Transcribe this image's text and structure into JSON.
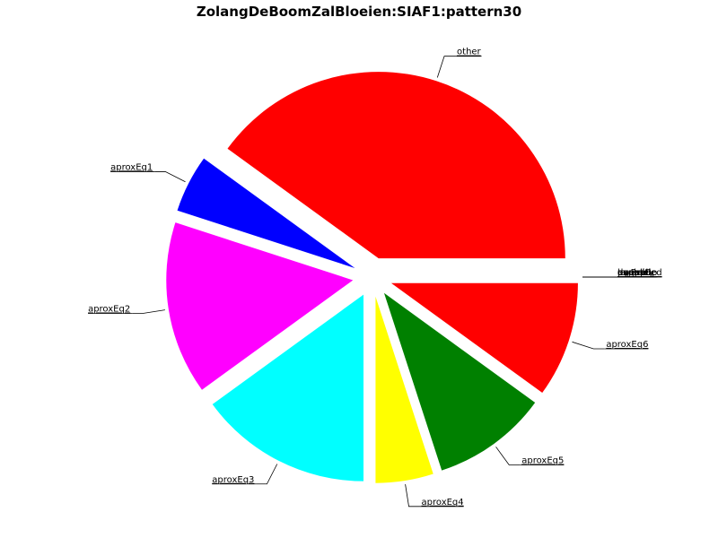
{
  "chart_data": {
    "type": "pie",
    "title": "ZolangDeBoomZalBloeien:SIAF1:pattern30",
    "slices": [
      {
        "label": "aproxEq6",
        "value": 10.0,
        "color": "#ff0000"
      },
      {
        "label": "aproxEq5",
        "value": 10.0,
        "color": "#008000"
      },
      {
        "label": "aproxEq4",
        "value": 5.0,
        "color": "#ffff00"
      },
      {
        "label": "aproxEq3",
        "value": 15.0,
        "color": "#00ffff"
      },
      {
        "label": "aproxEq2",
        "value": 15.0,
        "color": "#ff00ff"
      },
      {
        "label": "aproxEq1",
        "value": 5.0,
        "color": "#0000ff"
      },
      {
        "label": "other",
        "value": 40.0,
        "color": "#ff0000"
      }
    ],
    "empty_labels": [
      "unapplied",
      "expired",
      "lexRelOp",
      "dynamic",
      "parens",
      "negate",
      "equality"
    ],
    "start_angle": "3 o'clock",
    "direction": "clockwise",
    "legend": "none"
  }
}
